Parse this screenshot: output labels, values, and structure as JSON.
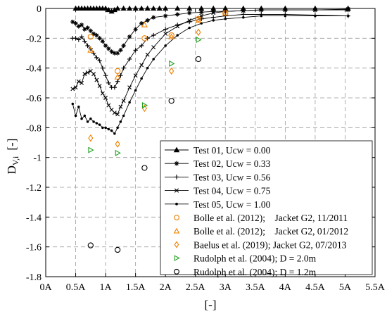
{
  "chart_data": {
    "type": "scatter",
    "xlabel": "[-]",
    "ylabel": "D",
    "ylabel_sub": "V,i",
    "ylabel_unit": "[-]",
    "xlim": [
      0,
      5.5
    ],
    "ylim": [
      -1.8,
      0
    ],
    "x_ticks": [
      0,
      0.5,
      1,
      1.5,
      2,
      2.5,
      3,
      3.5,
      4,
      4.5,
      5,
      5.5
    ],
    "x_tick_labels": [
      "0A",
      "0.5A",
      "1A",
      "1.5A",
      "2A",
      "2.5A",
      "3A",
      "3.5A",
      "4A",
      "4.5A",
      "5A",
      "5.5A"
    ],
    "y_ticks": [
      0,
      -0.2,
      -0.4,
      -0.6,
      -0.8,
      -1,
      -1.2,
      -1.4,
      -1.6,
      -1.8
    ],
    "y_tick_labels": [
      "0",
      "-0.2",
      "-0.4",
      "-0.6",
      "-0.8",
      "-1",
      "-1.2",
      "-1.4",
      "-1.6",
      "-1.8"
    ],
    "grid": true,
    "legend_position": "bottom-right",
    "series": [
      {
        "name": "Test 01, Ucw = 0.00",
        "marker": "triangle-filled",
        "color": "#000000",
        "line": true,
        "x": [
          0.5,
          0.55,
          0.6,
          0.65,
          0.7,
          0.75,
          0.8,
          0.85,
          0.9,
          0.95,
          1.0,
          1.05,
          1.1,
          1.15,
          1.2,
          1.3,
          1.4,
          1.5,
          1.6,
          1.7,
          1.8,
          1.9,
          2.0,
          2.2,
          2.4,
          2.6,
          2.8,
          3.0,
          3.3,
          3.6,
          4.0,
          4.5,
          5.05
        ],
        "y": [
          0,
          0,
          0,
          0,
          0,
          0,
          0,
          0,
          0,
          0,
          0,
          -0.01,
          -0.02,
          -0.01,
          0,
          0,
          0,
          0,
          0,
          0,
          0,
          0,
          0,
          0,
          0,
          0,
          0,
          0,
          0,
          0,
          0,
          0,
          0
        ]
      },
      {
        "name": "Test 02, Ucw = 0.33",
        "marker": "asterisk",
        "color": "#000000",
        "line": true,
        "x": [
          0.45,
          0.5,
          0.55,
          0.6,
          0.65,
          0.7,
          0.75,
          0.8,
          0.85,
          0.9,
          0.95,
          1.0,
          1.05,
          1.1,
          1.15,
          1.2,
          1.25,
          1.3,
          1.4,
          1.5,
          1.6,
          1.7,
          1.8,
          2.0,
          2.2,
          2.4,
          2.6,
          2.8,
          3.0,
          3.3,
          3.6,
          4.0,
          4.5,
          5.05
        ],
        "y": [
          -0.09,
          -0.1,
          -0.12,
          -0.11,
          -0.14,
          -0.13,
          -0.15,
          -0.17,
          -0.18,
          -0.2,
          -0.22,
          -0.25,
          -0.27,
          -0.29,
          -0.3,
          -0.3,
          -0.28,
          -0.25,
          -0.19,
          -0.14,
          -0.1,
          -0.08,
          -0.06,
          -0.05,
          -0.04,
          -0.03,
          -0.025,
          -0.02,
          -0.02,
          -0.015,
          -0.01,
          -0.01,
          -0.01,
          -0.01
        ]
      },
      {
        "name": "Test 03, Ucw = 0.56",
        "marker": "plus",
        "color": "#000000",
        "line": true,
        "x": [
          0.45,
          0.5,
          0.55,
          0.6,
          0.65,
          0.7,
          0.75,
          0.8,
          0.85,
          0.9,
          0.95,
          1.0,
          1.05,
          1.1,
          1.15,
          1.2,
          1.25,
          1.3,
          1.4,
          1.5,
          1.6,
          1.7,
          1.8,
          2.0,
          2.2,
          2.4,
          2.6,
          2.8,
          3.0,
          3.3,
          3.6,
          4.0,
          4.5,
          5.05
        ],
        "y": [
          -0.2,
          -0.2,
          -0.21,
          -0.19,
          -0.22,
          -0.25,
          -0.27,
          -0.3,
          -0.33,
          -0.35,
          -0.4,
          -0.45,
          -0.5,
          -0.53,
          -0.53,
          -0.49,
          -0.45,
          -0.4,
          -0.34,
          -0.28,
          -0.25,
          -0.2,
          -0.18,
          -0.14,
          -0.11,
          -0.09,
          -0.07,
          -0.06,
          -0.05,
          -0.04,
          -0.04,
          -0.04,
          -0.045,
          -0.05
        ]
      },
      {
        "name": "Test 04, Ucw = 0.75",
        "marker": "cross",
        "color": "#000000",
        "line": true,
        "x": [
          0.45,
          0.5,
          0.55,
          0.6,
          0.65,
          0.7,
          0.75,
          0.8,
          0.85,
          0.9,
          0.95,
          1.0,
          1.05,
          1.1,
          1.15,
          1.2,
          1.25,
          1.3,
          1.4,
          1.5,
          1.6,
          1.7,
          1.8,
          2.0,
          2.2,
          2.4,
          2.6,
          2.8,
          3.0,
          3.3,
          3.6,
          4.0,
          4.5,
          5.05
        ],
        "y": [
          -0.54,
          -0.53,
          -0.49,
          -0.5,
          -0.44,
          -0.43,
          -0.42,
          -0.44,
          -0.48,
          -0.52,
          -0.57,
          -0.6,
          -0.65,
          -0.68,
          -0.7,
          -0.71,
          -0.66,
          -0.62,
          -0.53,
          -0.45,
          -0.38,
          -0.31,
          -0.26,
          -0.17,
          -0.12,
          -0.08,
          -0.05,
          -0.03,
          -0.02,
          -0.015,
          -0.01,
          -0.01,
          -0.01,
          -0.005
        ]
      },
      {
        "name": "Test 05, Ucw = 1.00",
        "marker": "dot",
        "color": "#000000",
        "line": true,
        "x": [
          0.45,
          0.5,
          0.55,
          0.6,
          0.65,
          0.7,
          0.75,
          0.8,
          0.85,
          0.9,
          0.95,
          1.0,
          1.05,
          1.1,
          1.15,
          1.2,
          1.25,
          1.3,
          1.4,
          1.5,
          1.6,
          1.7,
          1.8,
          2.0,
          2.2,
          2.4,
          2.6,
          2.8,
          3.0,
          3.3,
          3.6,
          4.0,
          4.5,
          5.05
        ],
        "y": [
          -0.64,
          -0.72,
          -0.66,
          -0.74,
          -0.72,
          -0.76,
          -0.74,
          -0.76,
          -0.77,
          -0.78,
          -0.8,
          -0.8,
          -0.81,
          -0.82,
          -0.84,
          -0.8,
          -0.76,
          -0.72,
          -0.63,
          -0.55,
          -0.47,
          -0.4,
          -0.34,
          -0.25,
          -0.18,
          -0.13,
          -0.1,
          -0.08,
          -0.07,
          -0.06,
          -0.05,
          -0.05,
          -0.05,
          -0.05
        ]
      },
      {
        "name": "Bolle et al. (2012);    Jacket G2, 11/2011",
        "marker": "circle-open",
        "color": "#F08000",
        "line": false,
        "x": [
          0.75,
          1.2,
          1.65,
          2.1,
          2.55,
          3.0
        ],
        "y": [
          -0.19,
          -0.42,
          -0.2,
          -0.18,
          -0.07,
          -0.03
        ]
      },
      {
        "name": "Bolle et al. (2012);    Jacket G2, 01/2012",
        "marker": "triangle-open",
        "color": "#F08000",
        "line": false,
        "x": [
          0.75,
          1.2,
          1.65,
          2.1,
          2.55,
          3.0
        ],
        "y": [
          -0.28,
          -0.46,
          -0.11,
          -0.19,
          -0.08,
          -0.03
        ]
      },
      {
        "name": "Baelus et al. (2019); Jacket G2, 07/2013",
        "marker": "diamond-open",
        "color": "#F08000",
        "line": false,
        "x": [
          0.75,
          1.2,
          1.65,
          2.1,
          2.55
        ],
        "y": [
          -0.87,
          -0.91,
          -0.67,
          -0.42,
          -0.16
        ]
      },
      {
        "name": "Rudolph et al. (2004); D = 2.0m",
        "marker": "triangle-right-open",
        "color": "#22A022",
        "line": false,
        "x": [
          0.75,
          1.2,
          1.65,
          2.1,
          2.55
        ],
        "y": [
          -0.95,
          -0.97,
          -0.65,
          -0.37,
          -0.21
        ]
      },
      {
        "name": "Rudolph et al. (2004); D = 1.2m",
        "marker": "circle-open",
        "color": "#000000",
        "line": false,
        "x": [
          0.75,
          1.2,
          1.65,
          2.1,
          2.55
        ],
        "y": [
          -1.59,
          -1.62,
          -1.07,
          -0.62,
          -0.34
        ]
      }
    ]
  }
}
